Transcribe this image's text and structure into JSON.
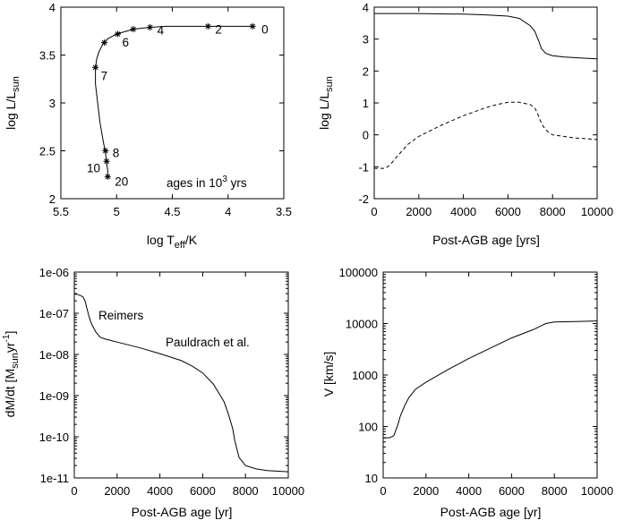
{
  "chart_data": [
    {
      "type": "line",
      "xlabel": "log T_eff/K",
      "ylabel": "log L/L_sun",
      "xlim": [
        5.5,
        3.5
      ],
      "ylim": [
        2,
        4
      ],
      "xticks": [
        "5.5",
        "5",
        "4.5",
        "4",
        "3.5"
      ],
      "yticks": [
        "2",
        "2.5",
        "3",
        "3.5",
        "4"
      ],
      "annotations": [
        "ages in 10^3 yrs"
      ],
      "x": [
        3.78,
        4.0,
        4.2,
        4.4,
        4.55,
        4.7,
        4.85,
        5.0,
        5.08,
        5.12,
        5.16,
        5.18,
        5.19,
        5.19,
        5.17,
        5.15,
        5.12,
        5.1,
        5.09,
        5.08,
        5.08
      ],
      "y": [
        3.8,
        3.8,
        3.8,
        3.8,
        3.8,
        3.79,
        3.77,
        3.72,
        3.67,
        3.62,
        3.53,
        3.45,
        3.35,
        3.2,
        3.0,
        2.8,
        2.6,
        2.48,
        2.38,
        2.3,
        2.23
      ],
      "age_markers": [
        {
          "label": "0",
          "x": 3.78,
          "y": 3.8
        },
        {
          "label": "2",
          "x": 4.18,
          "y": 3.8
        },
        {
          "label": "4",
          "x": 4.7,
          "y": 3.79
        },
        {
          "label": "",
          "x": 4.85,
          "y": 3.77
        },
        {
          "label": "6",
          "x": 4.99,
          "y": 3.72
        },
        {
          "label": "",
          "x": 5.11,
          "y": 3.63
        },
        {
          "label": "7",
          "x": 5.19,
          "y": 3.37
        },
        {
          "label": "8",
          "x": 5.1,
          "y": 2.5
        },
        {
          "label": "10",
          "x": 5.09,
          "y": 2.39
        },
        {
          "label": "20",
          "x": 5.08,
          "y": 2.23
        }
      ],
      "grid": false
    },
    {
      "type": "line",
      "xlabel": "Post-AGB age [yrs]",
      "ylabel": "log L/L_sun",
      "xlim": [
        0,
        10000
      ],
      "ylim": [
        -2,
        4
      ],
      "xticks": [
        "0",
        "2000",
        "4000",
        "6000",
        "8000",
        "10000"
      ],
      "yticks": [
        "-2",
        "-1",
        "0",
        "1",
        "2",
        "3",
        "4"
      ],
      "series": [
        {
          "style": "solid",
          "x": [
            0,
            1000,
            2000,
            3000,
            4000,
            5000,
            6000,
            6500,
            7000,
            7200,
            7400,
            7500,
            7700,
            8000,
            8500,
            9000,
            9500,
            10000
          ],
          "y": [
            3.8,
            3.8,
            3.8,
            3.79,
            3.78,
            3.76,
            3.72,
            3.65,
            3.42,
            3.25,
            2.9,
            2.7,
            2.55,
            2.48,
            2.44,
            2.42,
            2.4,
            2.38
          ]
        },
        {
          "style": "dashed",
          "x": [
            0,
            300,
            500,
            700,
            1000,
            1500,
            2000,
            3000,
            4000,
            5000,
            5500,
            6000,
            6500,
            7000,
            7200,
            7400,
            7500,
            7700,
            8000,
            8500,
            9000,
            9500,
            10000
          ],
          "y": [
            -1.05,
            -1.05,
            -1.05,
            -0.95,
            -0.7,
            -0.3,
            -0.05,
            0.3,
            0.6,
            0.85,
            0.95,
            1.02,
            1.02,
            0.95,
            0.85,
            0.55,
            0.35,
            0.15,
            0.0,
            -0.05,
            -0.1,
            -0.12,
            -0.15
          ]
        }
      ],
      "grid": false
    },
    {
      "type": "line",
      "xlabel": "Post-AGB age [yr]",
      "ylabel": "dM/dt [M_sun yr^-1]",
      "xlim": [
        0,
        10000
      ],
      "ylim_log10": [
        -11,
        -6
      ],
      "yscale": "log",
      "xticks": [
        "0",
        "2000",
        "4000",
        "6000",
        "8000",
        "10000"
      ],
      "yticks": [
        "1e-11",
        "1e-10",
        "1e-09",
        "1e-08",
        "1e-07",
        "1e-06"
      ],
      "annotations": [
        "Reimers",
        "Pauldrach et al."
      ],
      "series": [
        {
          "style": "solid",
          "x": [
            0,
            200,
            400,
            500,
            600,
            700,
            800,
            1000,
            1200,
            1400,
            2000,
            3000,
            4000,
            5000,
            5500,
            6000,
            6500,
            7000,
            7200,
            7400,
            7500,
            7700,
            8000,
            8500,
            9000,
            10000
          ],
          "log10_y": [
            -6.53,
            -6.55,
            -6.6,
            -6.7,
            -6.9,
            -7.1,
            -7.25,
            -7.45,
            -7.58,
            -7.62,
            -7.7,
            -7.83,
            -7.98,
            -8.15,
            -8.28,
            -8.45,
            -8.72,
            -9.15,
            -9.45,
            -9.8,
            -10.1,
            -10.5,
            -10.7,
            -10.78,
            -10.82,
            -10.85
          ]
        }
      ],
      "grid": false
    },
    {
      "type": "line",
      "xlabel": "Post-AGB age [yr]",
      "ylabel": "V [km/s]",
      "xlim": [
        0,
        10000
      ],
      "ylim_log10": [
        1,
        5
      ],
      "yscale": "log",
      "xticks": [
        "0",
        "2000",
        "4000",
        "6000",
        "8000",
        "10000"
      ],
      "yticks": [
        "10",
        "100",
        "1000",
        "10000",
        "100000"
      ],
      "series": [
        {
          "style": "solid",
          "x": [
            0,
            300,
            500,
            700,
            800,
            1000,
            1200,
            1500,
            2000,
            3000,
            4000,
            5000,
            6000,
            7000,
            7400,
            7600,
            8000,
            9000,
            10000
          ],
          "log10_y": [
            1.78,
            1.78,
            1.82,
            2.05,
            2.2,
            2.4,
            2.56,
            2.72,
            2.86,
            3.1,
            3.32,
            3.52,
            3.72,
            3.88,
            3.96,
            4.0,
            4.03,
            4.04,
            4.05
          ]
        }
      ],
      "grid": false
    }
  ]
}
